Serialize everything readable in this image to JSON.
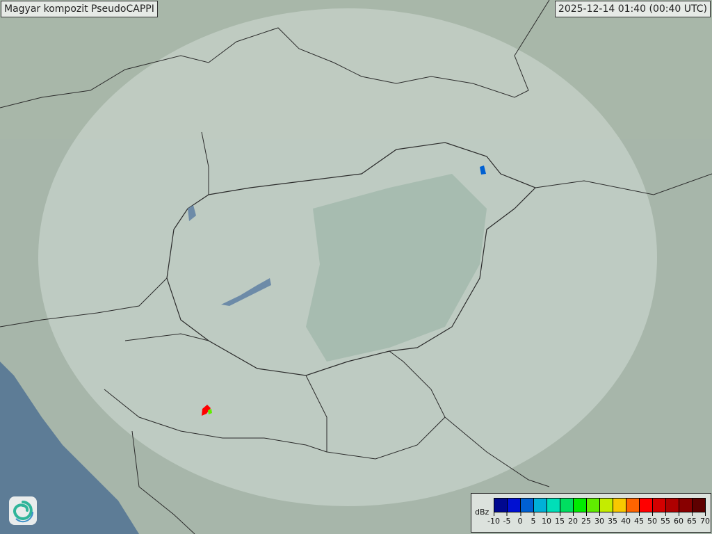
{
  "header": {
    "title": "Magyar kompozit  PseudoCAPPI",
    "timestamp": "2025-12-14 01:40 (00:40 UTC)"
  },
  "legend": {
    "unit": "dBz",
    "ticks": [
      "-10",
      "-5",
      "0",
      "5",
      "10",
      "15",
      "20",
      "25",
      "30",
      "35",
      "40",
      "45",
      "50",
      "55",
      "60",
      "65",
      "70"
    ],
    "colors": [
      "#00088f",
      "#0010d2",
      "#0060d2",
      "#00b0d8",
      "#00deb8",
      "#00de60",
      "#00ec00",
      "#60ec00",
      "#c4ec00",
      "#f8c800",
      "#ff6400",
      "#ff0000",
      "#d40000",
      "#ae0000",
      "#880000",
      "#5e0000"
    ]
  },
  "colors": {
    "land": "#a7b6aa",
    "coverage": "#c9d5cd",
    "sea": "#5d7c96",
    "border": "#2a2a2a"
  },
  "logo": {
    "icon": "swirl-logo-icon"
  }
}
